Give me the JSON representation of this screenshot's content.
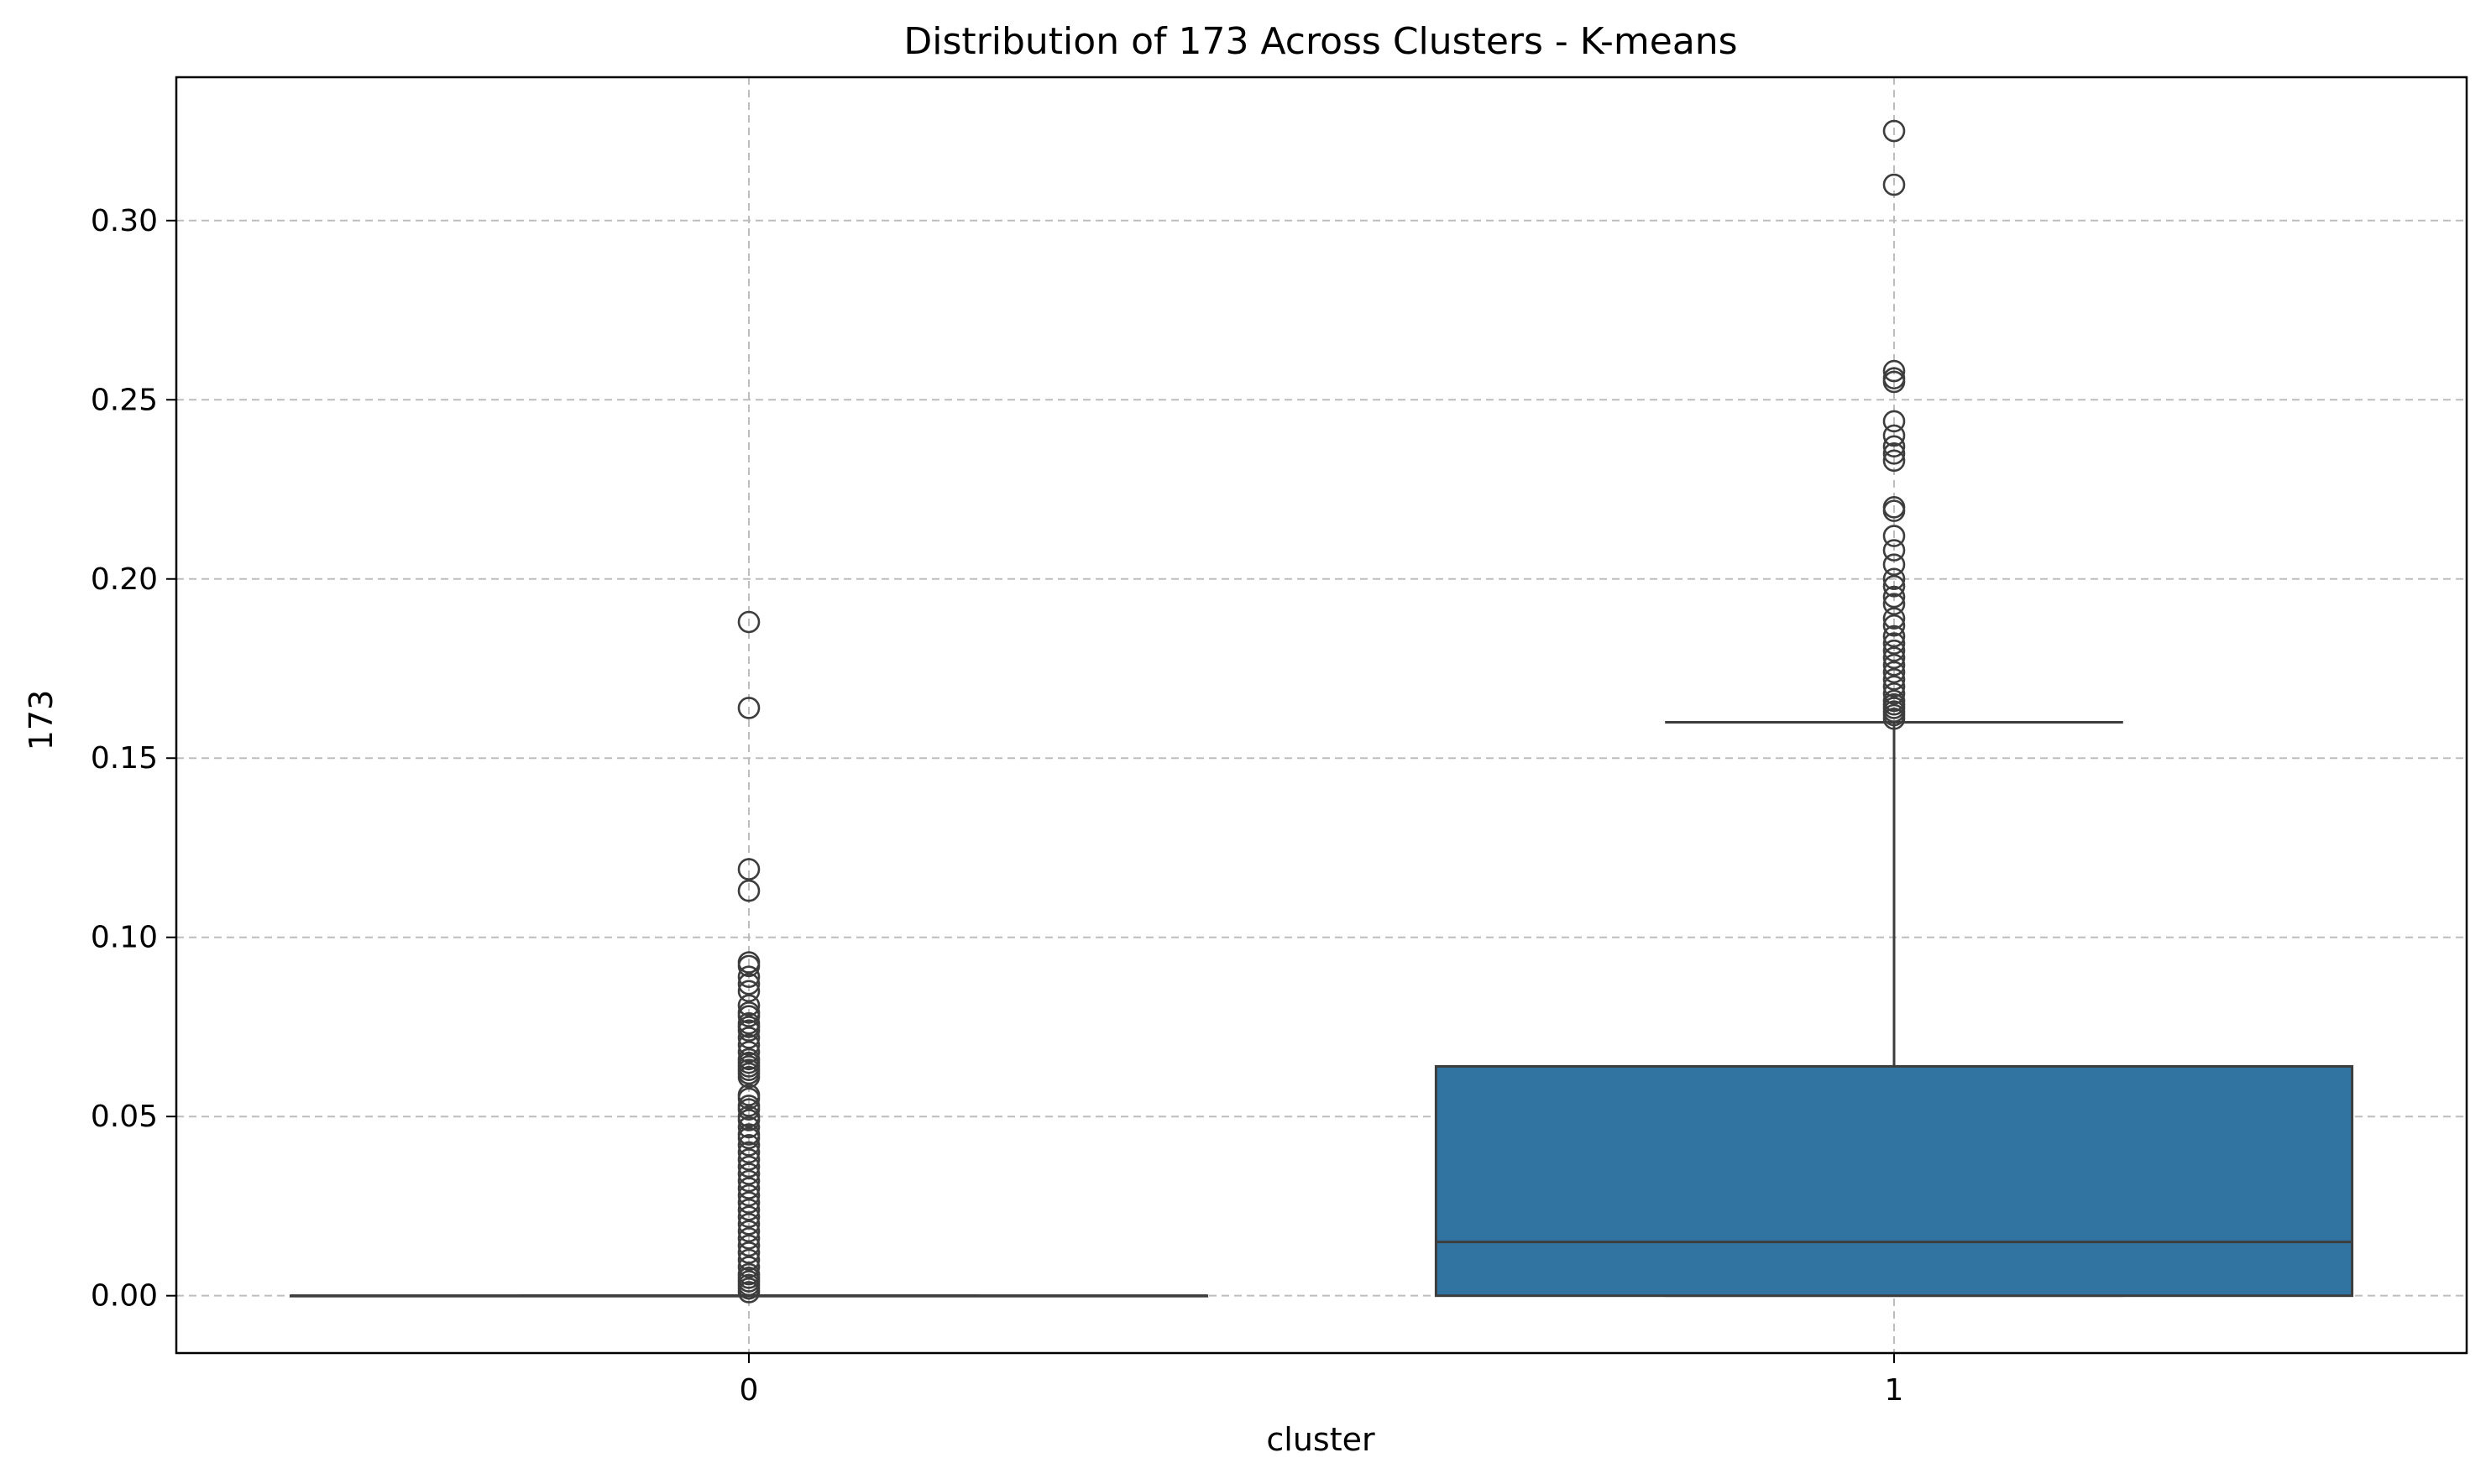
{
  "chart_data": {
    "type": "box",
    "title": "Distribution of 173 Across Clusters - K-means",
    "xlabel": "cluster",
    "ylabel": "173",
    "categories": [
      "0",
      "1"
    ],
    "ylim": [
      -0.016,
      0.34
    ],
    "yticks": [
      "0.00",
      "0.05",
      "0.10",
      "0.15",
      "0.20",
      "0.25",
      "0.30"
    ],
    "grid": true,
    "box_color": "#3274a1",
    "line_color": "#3d3d3d",
    "boxes": [
      {
        "category": "0",
        "whisker_low": 0.0,
        "q1": 0.0,
        "median": 0.0,
        "q3": 0.0,
        "whisker_high": 0.0,
        "outliers": [
          0.188,
          0.164,
          0.119,
          0.113,
          0.093,
          0.092,
          0.089,
          0.087,
          0.085,
          0.081,
          0.079,
          0.078,
          0.076,
          0.075,
          0.074,
          0.072,
          0.07,
          0.068,
          0.066,
          0.065,
          0.064,
          0.063,
          0.062,
          0.061,
          0.056,
          0.055,
          0.053,
          0.052,
          0.05,
          0.049,
          0.047,
          0.045,
          0.044,
          0.042,
          0.04,
          0.038,
          0.036,
          0.034,
          0.032,
          0.03,
          0.028,
          0.026,
          0.024,
          0.022,
          0.02,
          0.018,
          0.016,
          0.014,
          0.012,
          0.01,
          0.008,
          0.006,
          0.005,
          0.004,
          0.003,
          0.002,
          0.001
        ]
      },
      {
        "category": "1",
        "whisker_low": 0.0,
        "q1": 0.0,
        "median": 0.015,
        "q3": 0.064,
        "whisker_high": 0.16,
        "outliers": [
          0.325,
          0.31,
          0.258,
          0.256,
          0.255,
          0.244,
          0.24,
          0.237,
          0.235,
          0.233,
          0.22,
          0.219,
          0.212,
          0.208,
          0.204,
          0.2,
          0.198,
          0.195,
          0.193,
          0.189,
          0.187,
          0.184,
          0.182,
          0.18,
          0.178,
          0.176,
          0.174,
          0.172,
          0.17,
          0.168,
          0.166,
          0.165,
          0.164,
          0.163,
          0.162,
          0.161
        ]
      }
    ]
  }
}
